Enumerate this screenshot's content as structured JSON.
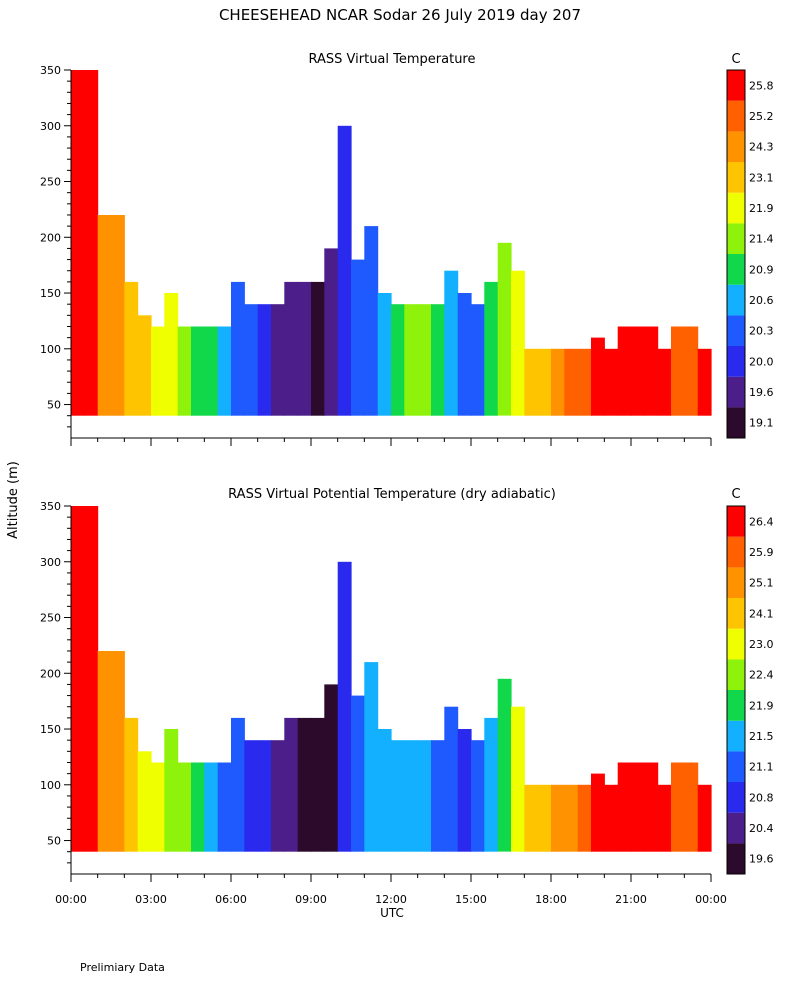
{
  "header": {
    "title": "CHEESEHEAD   NCAR Sodar   26 July 2019   day 207"
  },
  "footer": {
    "note": "Prelimiary Data"
  },
  "axes": {
    "ylabel": "Altitude (m)",
    "xlabel": "UTC",
    "x_ticks": [
      "00:00",
      "03:00",
      "06:00",
      "09:00",
      "12:00",
      "15:00",
      "18:00",
      "21:00",
      "00:00"
    ],
    "y_ticks": [
      50,
      100,
      150,
      200,
      250,
      300,
      350
    ],
    "ylim": [
      20,
      350
    ],
    "xlim_hours": [
      0,
      24
    ],
    "colorbar_unit": "C"
  },
  "colors": {
    "palette": [
      "#2b0a2b",
      "#4b1e8a",
      "#2a2aee",
      "#1f5aff",
      "#12b0ff",
      "#10d84a",
      "#8ef20a",
      "#f0ff00",
      "#ffc400",
      "#ff9200",
      "#ff6000",
      "#ff0000"
    ]
  },
  "chart_data": [
    {
      "type": "heatmap",
      "title": "RASS Virtual Temperature",
      "unit": "C",
      "xlabel": "UTC",
      "ylabel": "Altitude (m)",
      "ylim": [
        20,
        350
      ],
      "colorbar_levels": [
        19.1,
        19.6,
        20.0,
        20.3,
        20.6,
        20.9,
        21.4,
        21.9,
        23.1,
        24.3,
        25.2,
        25.8
      ],
      "bands": [
        {
          "h": 0.0,
          "top": 350,
          "v": 25.9
        },
        {
          "h": 0.5,
          "top": 350,
          "v": 25.9
        },
        {
          "h": 1.0,
          "top": 220,
          "v": 25.0
        },
        {
          "h": 1.5,
          "top": 220,
          "v": 24.4
        },
        {
          "h": 2.0,
          "top": 160,
          "v": 23.6
        },
        {
          "h": 2.5,
          "top": 130,
          "v": 23.2
        },
        {
          "h": 3.0,
          "top": 120,
          "v": 22.6
        },
        {
          "h": 3.5,
          "top": 150,
          "v": 22.0
        },
        {
          "h": 4.0,
          "top": 120,
          "v": 21.6
        },
        {
          "h": 4.5,
          "top": 120,
          "v": 21.3
        },
        {
          "h": 5.0,
          "top": 120,
          "v": 21.0
        },
        {
          "h": 5.5,
          "top": 120,
          "v": 20.7
        },
        {
          "h": 6.0,
          "top": 160,
          "v": 20.5
        },
        {
          "h": 6.5,
          "top": 140,
          "v": 20.3
        },
        {
          "h": 7.0,
          "top": 140,
          "v": 20.1
        },
        {
          "h": 7.5,
          "top": 140,
          "v": 19.9
        },
        {
          "h": 8.0,
          "top": 160,
          "v": 19.7
        },
        {
          "h": 8.5,
          "top": 160,
          "v": 19.6
        },
        {
          "h": 9.0,
          "top": 160,
          "v": 19.4
        },
        {
          "h": 9.5,
          "top": 190,
          "v": 19.6
        },
        {
          "h": 10.0,
          "top": 300,
          "v": 20.2
        },
        {
          "h": 10.5,
          "top": 180,
          "v": 20.4
        },
        {
          "h": 11.0,
          "top": 210,
          "v": 20.5
        },
        {
          "h": 11.5,
          "top": 150,
          "v": 20.7
        },
        {
          "h": 12.0,
          "top": 140,
          "v": 21.2
        },
        {
          "h": 12.5,
          "top": 140,
          "v": 21.6
        },
        {
          "h": 13.0,
          "top": 140,
          "v": 21.4
        },
        {
          "h": 13.5,
          "top": 140,
          "v": 21.0
        },
        {
          "h": 14.0,
          "top": 170,
          "v": 20.6
        },
        {
          "h": 14.5,
          "top": 150,
          "v": 20.3
        },
        {
          "h": 15.0,
          "top": 140,
          "v": 20.4
        },
        {
          "h": 15.5,
          "top": 160,
          "v": 21.0
        },
        {
          "h": 16.0,
          "top": 195,
          "v": 21.6
        },
        {
          "h": 16.5,
          "top": 170,
          "v": 22.5
        },
        {
          "h": 17.0,
          "top": 100,
          "v": 23.5
        },
        {
          "h": 17.5,
          "top": 100,
          "v": 24.2
        },
        {
          "h": 18.0,
          "top": 100,
          "v": 24.7
        },
        {
          "h": 18.5,
          "top": 100,
          "v": 25.2
        },
        {
          "h": 19.0,
          "top": 100,
          "v": 25.5
        },
        {
          "h": 19.5,
          "top": 110,
          "v": 25.8
        },
        {
          "h": 20.0,
          "top": 100,
          "v": 25.8
        },
        {
          "h": 20.5,
          "top": 120,
          "v": 25.9
        },
        {
          "h": 21.0,
          "top": 120,
          "v": 25.9
        },
        {
          "h": 21.5,
          "top": 120,
          "v": 25.9
        },
        {
          "h": 22.0,
          "top": 100,
          "v": 25.8
        },
        {
          "h": 22.5,
          "top": 120,
          "v": 25.6
        },
        {
          "h": 23.0,
          "top": 120,
          "v": 25.5
        },
        {
          "h": 23.5,
          "top": 100,
          "v": 25.8
        }
      ]
    },
    {
      "type": "heatmap",
      "title": "RASS Virtual Potential Temperature (dry adiabatic)",
      "unit": "C",
      "xlabel": "UTC",
      "ylabel": "Altitude (m)",
      "ylim": [
        20,
        350
      ],
      "colorbar_levels": [
        19.6,
        20.4,
        20.8,
        21.1,
        21.5,
        21.9,
        22.4,
        23.0,
        24.1,
        25.1,
        25.9,
        26.4
      ],
      "bands": [
        {
          "h": 0.0,
          "top": 350,
          "v": 26.5
        },
        {
          "h": 0.5,
          "top": 350,
          "v": 26.5
        },
        {
          "h": 1.0,
          "top": 220,
          "v": 25.8
        },
        {
          "h": 1.5,
          "top": 220,
          "v": 25.2
        },
        {
          "h": 2.0,
          "top": 160,
          "v": 24.4
        },
        {
          "h": 2.5,
          "top": 130,
          "v": 24.0
        },
        {
          "h": 3.0,
          "top": 120,
          "v": 23.4
        },
        {
          "h": 3.5,
          "top": 150,
          "v": 22.9
        },
        {
          "h": 4.0,
          "top": 120,
          "v": 22.4
        },
        {
          "h": 4.5,
          "top": 120,
          "v": 22.0
        },
        {
          "h": 5.0,
          "top": 120,
          "v": 21.7
        },
        {
          "h": 5.5,
          "top": 120,
          "v": 21.4
        },
        {
          "h": 6.0,
          "top": 160,
          "v": 21.2
        },
        {
          "h": 6.5,
          "top": 140,
          "v": 21.0
        },
        {
          "h": 7.0,
          "top": 140,
          "v": 20.8
        },
        {
          "h": 7.5,
          "top": 140,
          "v": 20.6
        },
        {
          "h": 8.0,
          "top": 160,
          "v": 20.4
        },
        {
          "h": 8.5,
          "top": 160,
          "v": 20.2
        },
        {
          "h": 9.0,
          "top": 160,
          "v": 20.0
        },
        {
          "h": 9.5,
          "top": 190,
          "v": 20.2
        },
        {
          "h": 10.0,
          "top": 300,
          "v": 21.0
        },
        {
          "h": 10.5,
          "top": 180,
          "v": 21.3
        },
        {
          "h": 11.0,
          "top": 210,
          "v": 21.6
        },
        {
          "h": 11.5,
          "top": 150,
          "v": 21.7
        },
        {
          "h": 12.0,
          "top": 140,
          "v": 21.6
        },
        {
          "h": 12.5,
          "top": 140,
          "v": 21.8
        },
        {
          "h": 13.0,
          "top": 140,
          "v": 21.6
        },
        {
          "h": 13.5,
          "top": 140,
          "v": 21.3
        },
        {
          "h": 14.0,
          "top": 170,
          "v": 21.2
        },
        {
          "h": 14.5,
          "top": 150,
          "v": 21.0
        },
        {
          "h": 15.0,
          "top": 140,
          "v": 21.1
        },
        {
          "h": 15.5,
          "top": 160,
          "v": 21.6
        },
        {
          "h": 16.0,
          "top": 195,
          "v": 22.3
        },
        {
          "h": 16.5,
          "top": 170,
          "v": 23.4
        },
        {
          "h": 17.0,
          "top": 100,
          "v": 24.2
        },
        {
          "h": 17.5,
          "top": 100,
          "v": 24.8
        },
        {
          "h": 18.0,
          "top": 100,
          "v": 25.4
        },
        {
          "h": 18.5,
          "top": 100,
          "v": 25.8
        },
        {
          "h": 19.0,
          "top": 100,
          "v": 26.1
        },
        {
          "h": 19.5,
          "top": 110,
          "v": 26.4
        },
        {
          "h": 20.0,
          "top": 100,
          "v": 26.4
        },
        {
          "h": 20.5,
          "top": 120,
          "v": 26.5
        },
        {
          "h": 21.0,
          "top": 120,
          "v": 26.5
        },
        {
          "h": 21.5,
          "top": 120,
          "v": 26.5
        },
        {
          "h": 22.0,
          "top": 100,
          "v": 26.4
        },
        {
          "h": 22.5,
          "top": 120,
          "v": 26.2
        },
        {
          "h": 23.0,
          "top": 120,
          "v": 26.0
        },
        {
          "h": 23.5,
          "top": 100,
          "v": 26.4
        }
      ]
    }
  ]
}
